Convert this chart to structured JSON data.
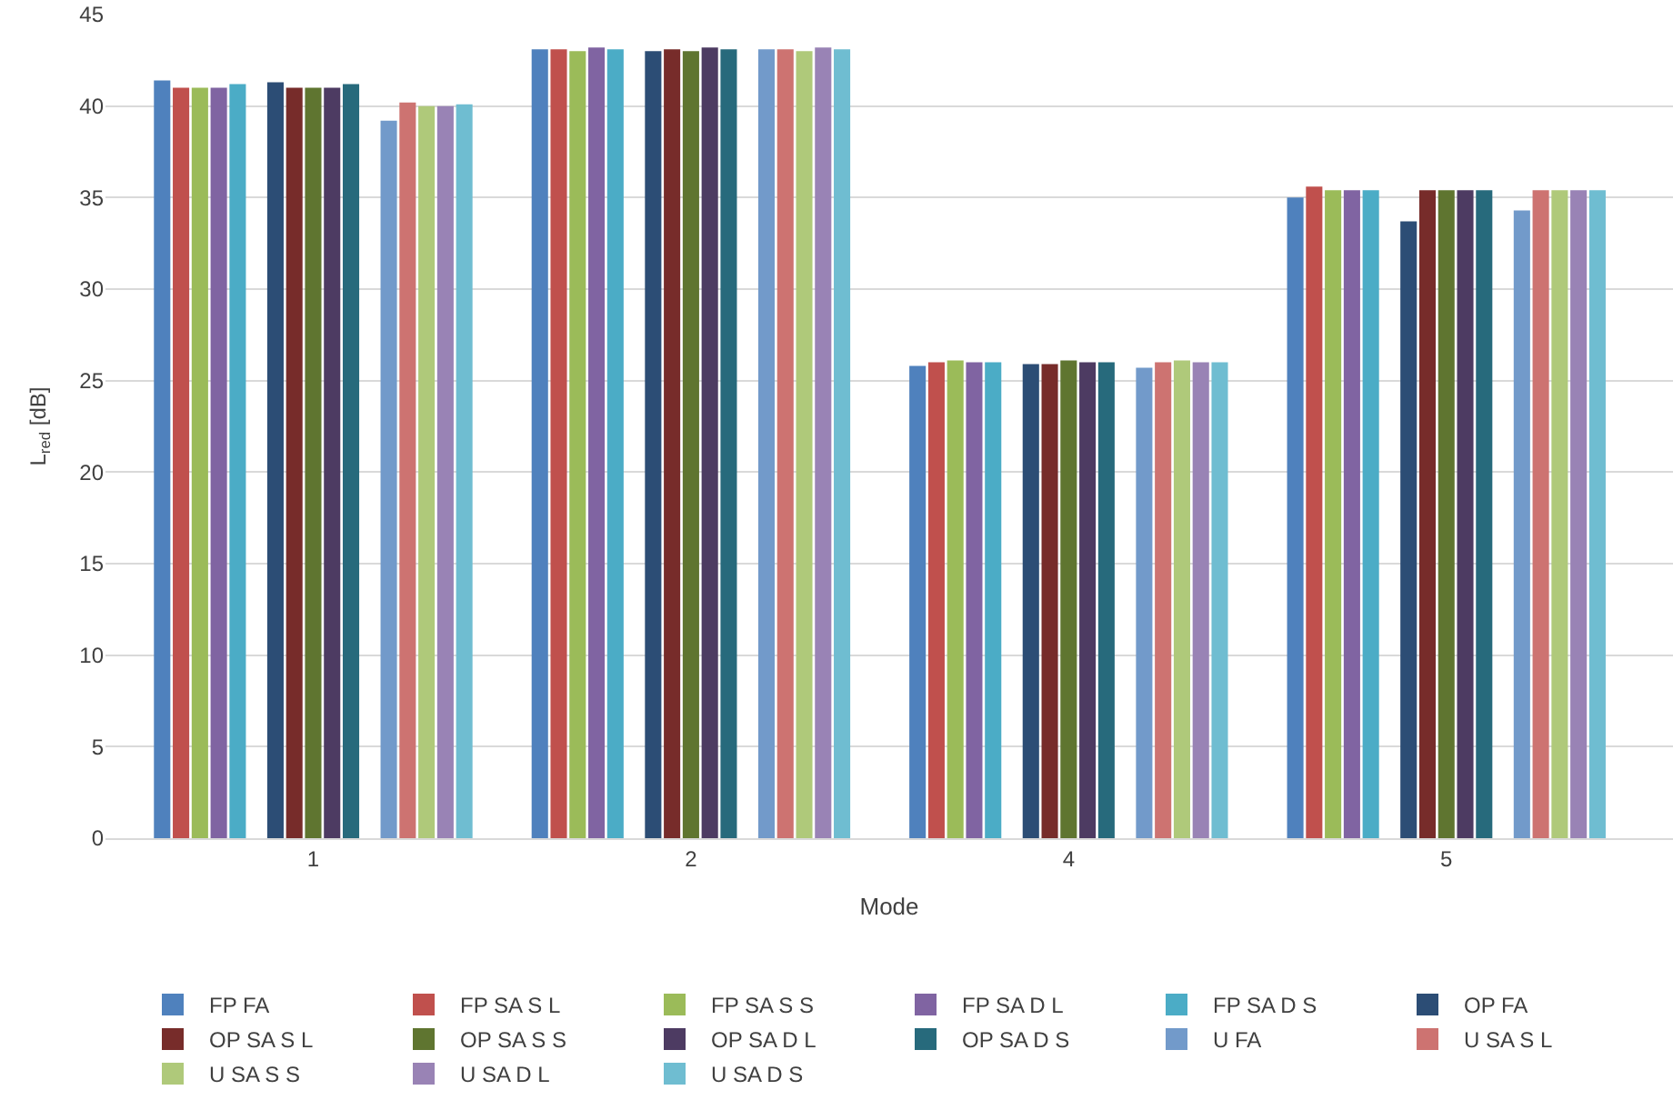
{
  "chart_data": {
    "type": "bar",
    "xlabel": "Mode",
    "ylabel": "L$_{red}$ [dB]",
    "categories": [
      "1",
      "2",
      "4",
      "5"
    ],
    "series": [
      {
        "name": "FP FA",
        "color": "#4f81bd",
        "values": [
          41.4,
          43.1,
          25.8,
          35.0
        ]
      },
      {
        "name": "FP SA S L",
        "color": "#c0504d",
        "values": [
          41.0,
          43.1,
          26.0,
          35.6
        ]
      },
      {
        "name": "FP SA S S",
        "color": "#9bbb59",
        "values": [
          41.0,
          43.0,
          26.1,
          35.4
        ]
      },
      {
        "name": "FP SA D L",
        "color": "#8064a2",
        "values": [
          41.0,
          43.2,
          26.0,
          35.4
        ]
      },
      {
        "name": "FP SA D S",
        "color": "#4bacc6",
        "values": [
          41.2,
          43.1,
          26.0,
          35.4
        ]
      },
      {
        "name": "OP FA",
        "color": "#2c4d75",
        "values": [
          41.3,
          43.0,
          25.9,
          33.7
        ]
      },
      {
        "name": "OP SA S L",
        "color": "#772c2a",
        "values": [
          41.0,
          43.1,
          25.9,
          35.4
        ]
      },
      {
        "name": "OP SA S S",
        "color": "#5f7530",
        "values": [
          41.0,
          43.0,
          26.1,
          35.4
        ]
      },
      {
        "name": "OP SA D L",
        "color": "#4d3b62",
        "values": [
          41.0,
          43.2,
          26.0,
          35.4
        ]
      },
      {
        "name": "OP SA D S",
        "color": "#276a7c",
        "values": [
          41.2,
          43.1,
          26.0,
          35.4
        ]
      },
      {
        "name": "U FA",
        "color": "#729aca",
        "values": [
          39.2,
          43.1,
          25.7,
          34.3
        ]
      },
      {
        "name": "U SA S L",
        "color": "#cd7371",
        "values": [
          40.2,
          43.1,
          26.0,
          35.4
        ]
      },
      {
        "name": "U SA S S",
        "color": "#afc97a",
        "values": [
          40.0,
          43.0,
          26.1,
          35.4
        ]
      },
      {
        "name": "U SA D L",
        "color": "#9983b5",
        "values": [
          40.0,
          43.2,
          26.0,
          35.4
        ]
      },
      {
        "name": "U SA D S",
        "color": "#6fbdd1",
        "values": [
          40.1,
          43.1,
          26.0,
          35.4
        ]
      }
    ],
    "ylim": [
      0,
      45
    ],
    "yticks": [
      0,
      5,
      10,
      15,
      20,
      25,
      30,
      35,
      40,
      45
    ],
    "grid": "y",
    "legend": "bottom"
  }
}
